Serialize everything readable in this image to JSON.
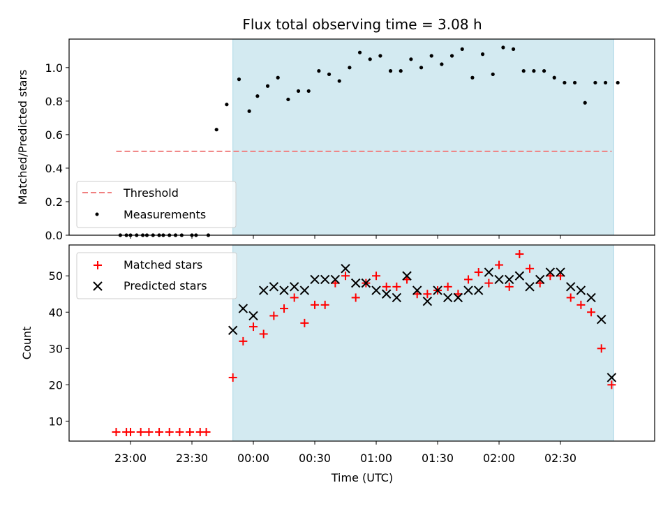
{
  "chart_data": [
    {
      "type": "scatter",
      "title": "Flux total observing time = 3.08 h",
      "ylabel": "Matched/Predicted stars",
      "ylim": [
        0,
        1.17
      ],
      "yticks": [
        "0.0",
        "0.2",
        "0.4",
        "0.6",
        "0.8",
        "1.0"
      ],
      "observing_window": {
        "start": "23:50",
        "end": "02:56"
      },
      "threshold": {
        "value": 0.5,
        "x_start": "22:53",
        "x_end": "02:55"
      },
      "series": [
        {
          "name": "Measurements",
          "x": [
            "22:55",
            "22:58",
            "23:00",
            "23:03",
            "23:06",
            "23:08",
            "23:11",
            "23:14",
            "23:16",
            "23:19",
            "23:22",
            "23:25",
            "23:30",
            "23:32",
            "23:38",
            "23:42",
            "23:47",
            "23:53",
            "23:58",
            "24:02",
            "24:07",
            "24:12",
            "24:17",
            "24:22",
            "24:27",
            "24:32",
            "24:37",
            "24:42",
            "24:47",
            "24:52",
            "24:57",
            "25:02",
            "25:07",
            "25:12",
            "25:17",
            "25:22",
            "25:27",
            "25:32",
            "25:37",
            "25:42",
            "25:47",
            "25:52",
            "25:57",
            "26:02",
            "26:07",
            "26:12",
            "26:17",
            "26:22",
            "26:27",
            "26:32",
            "26:37",
            "26:42",
            "26:47",
            "26:52",
            "26:58"
          ],
          "values": [
            0,
            0,
            0,
            0,
            0,
            0,
            0,
            0,
            0,
            0,
            0,
            0,
            0,
            0,
            0,
            0.63,
            0.78,
            0.93,
            0.74,
            0.83,
            0.89,
            0.94,
            0.81,
            0.86,
            0.86,
            0.98,
            0.96,
            0.92,
            1.0,
            1.09,
            1.05,
            1.07,
            0.98,
            0.98,
            1.05,
            1.0,
            1.07,
            1.02,
            1.07,
            1.11,
            0.94,
            1.08,
            0.96,
            1.12,
            1.11,
            0.98,
            0.98,
            0.98,
            0.94,
            0.91,
            0.91,
            0.79,
            0.91,
            0.91,
            0.91
          ]
        }
      ],
      "legend": [
        "Threshold",
        "Measurements"
      ],
      "legend_position": "lower-left"
    },
    {
      "type": "scatter",
      "xlabel": "Time (UTC)",
      "ylabel": "Count",
      "ylim": [
        4.5,
        58.5
      ],
      "yticks": [
        "10",
        "20",
        "30",
        "40",
        "50"
      ],
      "xticks": [
        "23:00",
        "23:30",
        "00:00",
        "00:30",
        "01:00",
        "01:30",
        "02:00",
        "02:30"
      ],
      "observing_window": {
        "start": "23:50",
        "end": "02:56"
      },
      "series": [
        {
          "name": "Matched stars",
          "x": [
            "22:53",
            "22:58",
            "23:00",
            "23:05",
            "23:09",
            "23:14",
            "23:19",
            "23:24",
            "23:29",
            "23:34",
            "23:37",
            "23:50",
            "23:55",
            "24:00",
            "24:05",
            "24:10",
            "24:15",
            "24:20",
            "24:25",
            "24:30",
            "24:35",
            "24:40",
            "24:45",
            "24:50",
            "24:55",
            "25:00",
            "25:05",
            "25:10",
            "25:15",
            "25:20",
            "25:25",
            "25:30",
            "25:35",
            "25:40",
            "25:45",
            "25:50",
            "25:55",
            "26:00",
            "26:05",
            "26:10",
            "26:15",
            "26:20",
            "26:25",
            "26:30",
            "26:35",
            "26:40",
            "26:45",
            "26:50",
            "26:55"
          ],
          "values": [
            7,
            7,
            7,
            7,
            7,
            7,
            7,
            7,
            7,
            7,
            7,
            22,
            32,
            36,
            34,
            39,
            41,
            44,
            37,
            42,
            42,
            48,
            50,
            44,
            48,
            50,
            47,
            47,
            49,
            45,
            45,
            46,
            47,
            45,
            49,
            51,
            48,
            53,
            47,
            56,
            52,
            48,
            50,
            50,
            44,
            42,
            40,
            30,
            20
          ]
        },
        {
          "name": "Predicted stars",
          "x": [
            "23:50",
            "23:55",
            "24:00",
            "24:05",
            "24:10",
            "24:15",
            "24:20",
            "24:25",
            "24:30",
            "24:35",
            "24:40",
            "24:45",
            "24:50",
            "24:55",
            "25:00",
            "25:05",
            "25:10",
            "25:15",
            "25:20",
            "25:25",
            "25:30",
            "25:35",
            "25:40",
            "25:45",
            "25:50",
            "25:55",
            "26:00",
            "26:05",
            "26:10",
            "26:15",
            "26:20",
            "26:25",
            "26:30",
            "26:35",
            "26:40",
            "26:45",
            "26:50",
            "26:55"
          ],
          "values": [
            35,
            41,
            39,
            46,
            47,
            46,
            47,
            46,
            49,
            49,
            49,
            52,
            48,
            48,
            46,
            45,
            44,
            50,
            46,
            43,
            46,
            44,
            44,
            46,
            46,
            51,
            49,
            49,
            50,
            47,
            49,
            51,
            51,
            47,
            46,
            44,
            38,
            22
          ]
        }
      ],
      "legend": [
        "Matched stars",
        "Predicted stars"
      ],
      "legend_position": "upper-left"
    }
  ],
  "colors": {
    "window_fill": "#d3eaf1",
    "threshold": "#f08080",
    "measurements": "#000000",
    "matched": "#ff0000",
    "predicted": "#000000"
  }
}
